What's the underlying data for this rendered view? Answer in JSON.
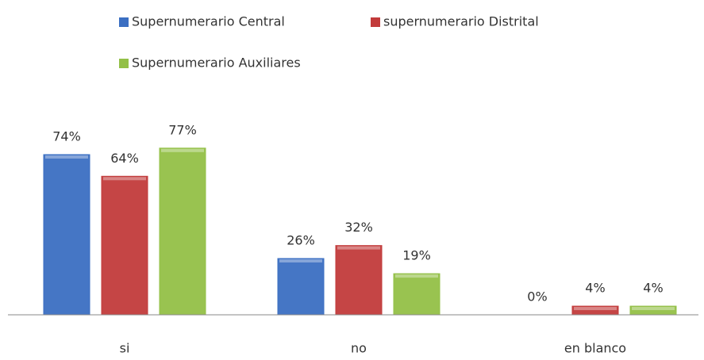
{
  "chart_data": {
    "type": "bar",
    "categories": [
      "si",
      "no",
      "en blanco"
    ],
    "series": [
      {
        "name": "Supernumerario Central",
        "color": "#3b6fc2",
        "values": [
          74,
          26,
          0
        ],
        "value_labels": [
          "74%",
          "26%",
          "0%"
        ]
      },
      {
        "name": "supernumerario Distrital",
        "color": "#c23b3b",
        "values": [
          64,
          32,
          4
        ],
        "value_labels": [
          "64%",
          "32%",
          "4%"
        ]
      },
      {
        "name": "Supernumerario Auxiliares",
        "color": "#93c047",
        "values": [
          77,
          19,
          4
        ],
        "value_labels": [
          "77%",
          "19%",
          "4%"
        ]
      }
    ],
    "legend": "top"
  }
}
